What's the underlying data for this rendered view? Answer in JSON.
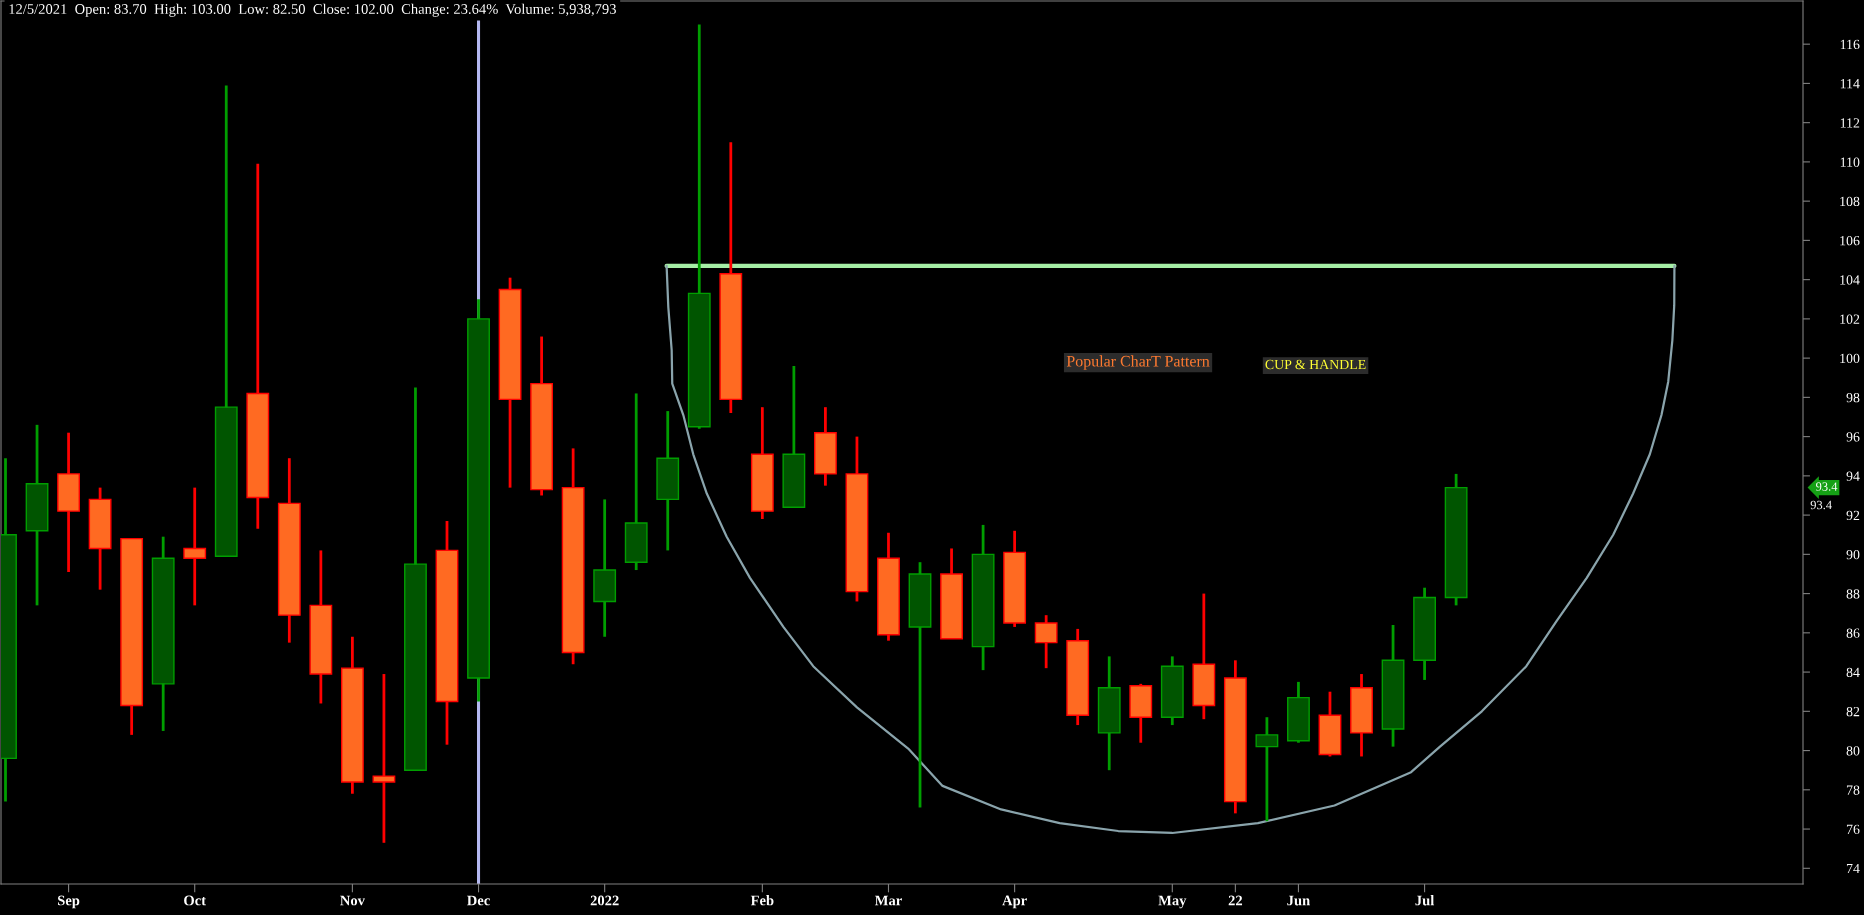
{
  "chart_data": {
    "type": "candlestick",
    "title": "12/5/2021  Open: 83.70  High: 103.00  Low: 82.50  Close: 102.00  Change: 23.64%  Volume: 5,938,793",
    "x": [
      "2021-08-22",
      "2021-08-29",
      "2021-09-05",
      "2021-09-12",
      "2021-09-19",
      "2021-09-26",
      "2021-10-03",
      "2021-10-10",
      "2021-10-17",
      "2021-10-24",
      "2021-10-31",
      "2021-11-07",
      "2021-11-14",
      "2021-11-21",
      "2021-11-28",
      "2021-12-05",
      "2021-12-12",
      "2021-12-19",
      "2021-12-26",
      "2022-01-02",
      "2022-01-09",
      "2022-01-16",
      "2022-01-23",
      "2022-01-30",
      "2022-02-06",
      "2022-02-13",
      "2022-02-20",
      "2022-02-27",
      "2022-03-06",
      "2022-03-13",
      "2022-03-20",
      "2022-03-27",
      "2022-04-03",
      "2022-04-10",
      "2022-04-17",
      "2022-04-24",
      "2022-05-01",
      "2022-05-08",
      "2022-05-15",
      "2022-05-22",
      "2022-05-29",
      "2022-06-05",
      "2022-06-12",
      "2022-06-19",
      "2022-06-26",
      "2022-07-03",
      "2022-07-10"
    ],
    "ohlc": [
      [
        79.6,
        94.9,
        77.4,
        91.0
      ],
      [
        91.2,
        96.6,
        87.4,
        93.6
      ],
      [
        94.1,
        96.2,
        89.1,
        92.2
      ],
      [
        92.8,
        93.4,
        88.2,
        90.3
      ],
      [
        90.8,
        90.8,
        80.8,
        82.3
      ],
      [
        83.4,
        90.9,
        81.0,
        89.8
      ],
      [
        90.3,
        93.4,
        87.4,
        89.8
      ],
      [
        89.9,
        113.9,
        89.9,
        97.5
      ],
      [
        98.2,
        109.9,
        91.3,
        92.9
      ],
      [
        92.6,
        94.9,
        85.5,
        86.9
      ],
      [
        87.4,
        90.2,
        82.4,
        83.9
      ],
      [
        84.2,
        85.8,
        77.8,
        78.4
      ],
      [
        78.7,
        83.9,
        75.3,
        78.4
      ],
      [
        79.0,
        98.5,
        79.0,
        89.5
      ],
      [
        90.2,
        91.7,
        80.3,
        82.5
      ],
      [
        83.7,
        103.0,
        82.5,
        102.0
      ],
      [
        103.5,
        104.1,
        93.4,
        97.9
      ],
      [
        98.7,
        101.1,
        93.0,
        93.3
      ],
      [
        93.4,
        95.4,
        84.4,
        85.0
      ],
      [
        87.6,
        92.8,
        85.8,
        89.2
      ],
      [
        89.6,
        98.2,
        89.2,
        91.6
      ],
      [
        92.8,
        97.3,
        90.2,
        94.9
      ],
      [
        96.5,
        117.0,
        96.4,
        103.3
      ],
      [
        104.3,
        111.0,
        97.2,
        97.9
      ],
      [
        95.1,
        97.5,
        91.8,
        92.2
      ],
      [
        92.4,
        99.6,
        92.4,
        95.1
      ],
      [
        96.2,
        97.5,
        93.5,
        94.1
      ],
      [
        94.1,
        96.0,
        87.6,
        88.1
      ],
      [
        89.8,
        91.1,
        85.6,
        85.9
      ],
      [
        86.3,
        89.6,
        77.1,
        89.0
      ],
      [
        89.0,
        90.3,
        85.7,
        85.7
      ],
      [
        85.3,
        91.5,
        84.1,
        90.0
      ],
      [
        90.1,
        91.2,
        86.3,
        86.5
      ],
      [
        86.5,
        86.9,
        84.2,
        85.5
      ],
      [
        85.6,
        86.2,
        81.3,
        81.8
      ],
      [
        80.9,
        84.8,
        79.0,
        83.2
      ],
      [
        83.3,
        83.4,
        80.4,
        81.7
      ],
      [
        81.7,
        84.8,
        81.3,
        84.3
      ],
      [
        84.4,
        88.0,
        81.6,
        82.3
      ],
      [
        83.7,
        84.6,
        76.8,
        77.4
      ],
      [
        80.2,
        81.7,
        76.4,
        80.8
      ],
      [
        80.5,
        83.5,
        80.4,
        82.7
      ],
      [
        81.8,
        83.0,
        79.7,
        79.8
      ],
      [
        83.2,
        83.9,
        79.7,
        80.9
      ],
      [
        81.1,
        86.4,
        80.2,
        84.6
      ],
      [
        84.6,
        88.3,
        83.6,
        87.8
      ],
      [
        87.8,
        94.1,
        87.4,
        93.4
      ]
    ],
    "colors": [
      "#005500",
      "#005500",
      "#ff6a22",
      "#ff6a22",
      "#ff6a22",
      "#005500",
      "#ff6a22",
      "#005500",
      "#ff6a22",
      "#ff6a22",
      "#ff6a22",
      "#ff6a22",
      "#ff6a22",
      "#005500",
      "#ff6a22",
      "#005500",
      "#ff6a22",
      "#ff6a22",
      "#ff6a22",
      "#005500",
      "#005500",
      "#005500",
      "#005500",
      "#ff6a22",
      "#ff6a22",
      "#005500",
      "#ff6a22",
      "#ff6a22",
      "#ff6a22",
      "#005500",
      "#ff6a22",
      "#005500",
      "#ff6a22",
      "#ff6a22",
      "#ff6a22",
      "#005500",
      "#ff6a22",
      "#005500",
      "#ff6a22",
      "#ff6a22",
      "#005500",
      "#005500",
      "#ff6a22",
      "#ff6a22",
      "#005500",
      "#005500",
      "#005500"
    ],
    "series": [
      {
        "type": "line",
        "color": "#a6eea6",
        "x": [
          "2022-01-15T18:00",
          "2022-08-27T11:00"
        ],
        "values": [
          104.7,
          104.7
        ]
      },
      {
        "type": "line",
        "color": "#8aa4ac",
        "x": [
          "2022-01-15T18:00",
          "2022-01-16T03:00",
          "2022-01-16T21:00",
          "2022-01-17",
          "2022-01-19T11:00",
          "2022-01-21T16:00",
          "2022-01-24T16:00",
          "2022-01-29T02:00",
          "2022-02-03T06:00",
          "2022-02-10T16:00",
          "2022-02-17T07:00",
          "2022-02-27",
          "2022-03-10T09:00",
          "2022-03-18",
          "2022-03-31",
          "2022-04-13",
          "2022-04-26",
          "2022-05-08",
          "2022-05-27",
          "2022-06-13",
          "2022-06-30",
          "2022-07-06T10:00",
          "2022-07-15T17:00",
          "2022-07-25T14:00",
          "2022-08-01T07:00",
          "2022-08-08",
          "2022-08-13T21:00",
          "2022-08-18T07:00",
          "2022-08-22",
          "2022-08-24T14:00",
          "2022-08-26T02:00",
          "2022-08-27",
          "2022-08-27T10:00",
          "2022-08-27T11:00"
        ],
        "values": [
          104.7,
          102.6,
          100.4,
          98.7,
          97.1,
          95.1,
          93.1,
          90.9,
          88.8,
          86.3,
          84.3,
          82.2,
          80.1,
          78.2,
          77.0,
          76.3,
          75.9,
          75.8,
          76.3,
          77.2,
          78.9,
          80.2,
          82.0,
          84.3,
          86.6,
          88.8,
          91.0,
          93.1,
          95.1,
          97.1,
          98.8,
          100.9,
          102.7,
          104.7
        ]
      }
    ],
    "xlim": [
      "2021-08-21",
      "2022-09-25"
    ],
    "xticks": [
      {
        "value": "2021-09-05",
        "label": "Sep"
      },
      {
        "value": "2021-10-03",
        "label": "Oct"
      },
      {
        "value": "2021-11-07",
        "label": "Nov"
      },
      {
        "value": "2021-12-05",
        "label": "Dec"
      },
      {
        "value": "2022-01-02",
        "label": "2022"
      },
      {
        "value": "2022-02-06",
        "label": "Feb"
      },
      {
        "value": "2022-03-06",
        "label": "Mar"
      },
      {
        "value": "2022-04-03",
        "label": "Apr"
      },
      {
        "value": "2022-05-08",
        "label": "May"
      },
      {
        "value": "2022-05-22",
        "label": "22"
      },
      {
        "value": "2022-06-05",
        "label": "Jun"
      },
      {
        "value": "2022-07-03",
        "label": "Jul"
      }
    ],
    "ylim": [
      73.2,
      118.2
    ],
    "yticks": [
      74,
      76,
      78,
      80,
      82,
      84,
      86,
      88,
      90,
      92,
      94,
      96,
      98,
      100,
      102,
      104,
      106,
      108,
      110,
      112,
      114,
      116
    ],
    "ref_lines": [
      {
        "axis": "x",
        "value": "2021-12-05",
        "color": "#b4b8f0"
      }
    ],
    "annotations": [
      "Popular CharT Pattern",
      "CUP & HANDLE",
      "93.4",
      "93.4"
    ]
  }
}
